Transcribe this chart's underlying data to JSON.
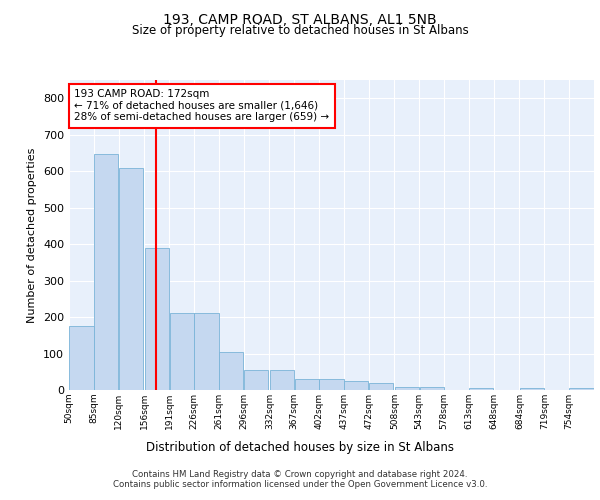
{
  "title": "193, CAMP ROAD, ST ALBANS, AL1 5NB",
  "subtitle": "Size of property relative to detached houses in St Albans",
  "xlabel": "Distribution of detached houses by size in St Albans",
  "ylabel": "Number of detached properties",
  "bar_color": "#c5d8f0",
  "bar_edge_color": "#7ab4d8",
  "background_color": "#e8f0fb",
  "vline_x": 172,
  "vline_color": "red",
  "annotation_text": "193 CAMP ROAD: 172sqm\n← 71% of detached houses are smaller (1,646)\n28% of semi-detached houses are larger (659) →",
  "annotation_box_color": "white",
  "annotation_box_edge_color": "red",
  "footer": "Contains HM Land Registry data © Crown copyright and database right 2024.\nContains public sector information licensed under the Open Government Licence v3.0.",
  "bin_edges": [
    50,
    85,
    120,
    156,
    191,
    226,
    261,
    296,
    332,
    367,
    402,
    437,
    472,
    508,
    543,
    578,
    613,
    648,
    684,
    719,
    754
  ],
  "bin_labels": [
    "50sqm",
    "85sqm",
    "120sqm",
    "156sqm",
    "191sqm",
    "226sqm",
    "261sqm",
    "296sqm",
    "332sqm",
    "367sqm",
    "402sqm",
    "437sqm",
    "472sqm",
    "508sqm",
    "543sqm",
    "578sqm",
    "613sqm",
    "648sqm",
    "684sqm",
    "719sqm",
    "754sqm"
  ],
  "bar_heights": [
    175,
    648,
    610,
    390,
    210,
    210,
    105,
    55,
    55,
    30,
    30,
    25,
    20,
    8,
    8,
    0,
    5,
    0,
    5,
    0,
    5
  ],
  "ylim": [
    0,
    850
  ],
  "yticks": [
    0,
    100,
    200,
    300,
    400,
    500,
    600,
    700,
    800
  ]
}
